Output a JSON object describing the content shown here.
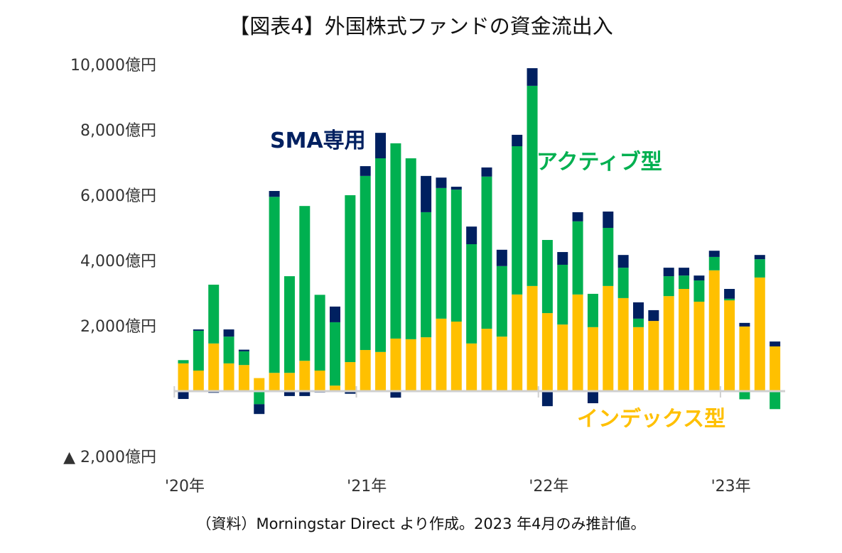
{
  "chart_data": {
    "type": "bar",
    "stacked": true,
    "title": "【図表4】外国株式ファンドの資金流出入",
    "note": "（資料）Morningstar Direct より作成。2023 年4月のみ推計値。",
    "unit": "億円",
    "ylim": [
      -2000,
      10000
    ],
    "y_ticks": [
      {
        "value": 10000,
        "label": "10,000億円"
      },
      {
        "value": 8000,
        "label": "8,000億円"
      },
      {
        "value": 6000,
        "label": "6,000億円"
      },
      {
        "value": 4000,
        "label": "4,000億円"
      },
      {
        "value": 2000,
        "label": "2,000億円"
      },
      {
        "value": -2000,
        "label": "▲ 2,000億円"
      }
    ],
    "x_ticks": [
      {
        "index": 0,
        "label": "'20年"
      },
      {
        "index": 12,
        "label": "'21年"
      },
      {
        "index": 24,
        "label": "'22年"
      },
      {
        "index": 36,
        "label": "'23年"
      }
    ],
    "categories": [
      "2020-01",
      "2020-02",
      "2020-03",
      "2020-04",
      "2020-05",
      "2020-06",
      "2020-07",
      "2020-08",
      "2020-09",
      "2020-10",
      "2020-11",
      "2020-12",
      "2021-01",
      "2021-02",
      "2021-03",
      "2021-04",
      "2021-05",
      "2021-06",
      "2021-07",
      "2021-08",
      "2021-09",
      "2021-10",
      "2021-11",
      "2021-12",
      "2022-01",
      "2022-02",
      "2022-03",
      "2022-04",
      "2022-05",
      "2022-06",
      "2022-07",
      "2022-08",
      "2022-09",
      "2022-10",
      "2022-11",
      "2022-12",
      "2023-01",
      "2023-02",
      "2023-03",
      "2023-04"
    ],
    "grid": false,
    "series": [
      {
        "name": "インデックス型",
        "color": "#FFC000",
        "values": [
          850,
          630,
          1460,
          850,
          800,
          400,
          560,
          560,
          930,
          630,
          170,
          890,
          1260,
          1200,
          1610,
          1590,
          1650,
          2220,
          2130,
          1460,
          1910,
          1670,
          2960,
          3220,
          2390,
          2040,
          2960,
          1960,
          3220,
          2850,
          1960,
          2150,
          2910,
          3130,
          2740,
          3700,
          2780,
          1980,
          3480,
          1370
        ]
      },
      {
        "name": "アクティブ型",
        "color": "#00B050",
        "values": [
          100,
          1220,
          1800,
          820,
          420,
          -400,
          5390,
          2960,
          4740,
          2320,
          1940,
          5110,
          5330,
          5930,
          5980,
          5540,
          3830,
          4000,
          4040,
          3040,
          4660,
          2160,
          4540,
          6130,
          2240,
          1830,
          2240,
          1020,
          1780,
          930,
          260,
          0,
          610,
          410,
          650,
          410,
          50,
          -250,
          560,
          -550
        ]
      },
      {
        "name": "SMA専用",
        "color": "#002060",
        "values": [
          -240,
          40,
          -50,
          220,
          50,
          -300,
          180,
          -150,
          -150,
          -40,
          480,
          -80,
          300,
          780,
          -200,
          0,
          1110,
          320,
          90,
          540,
          280,
          500,
          350,
          540,
          -460,
          390,
          280,
          -370,
          500,
          390,
          500,
          330,
          260,
          240,
          150,
          190,
          300,
          110,
          130,
          150
        ]
      }
    ],
    "annotations": [
      {
        "text": "SMA専用",
        "series": "SMA専用"
      },
      {
        "text": "アクティブ型",
        "series": "アクティブ型"
      },
      {
        "text": "インデックス型",
        "series": "インデックス型"
      }
    ]
  }
}
